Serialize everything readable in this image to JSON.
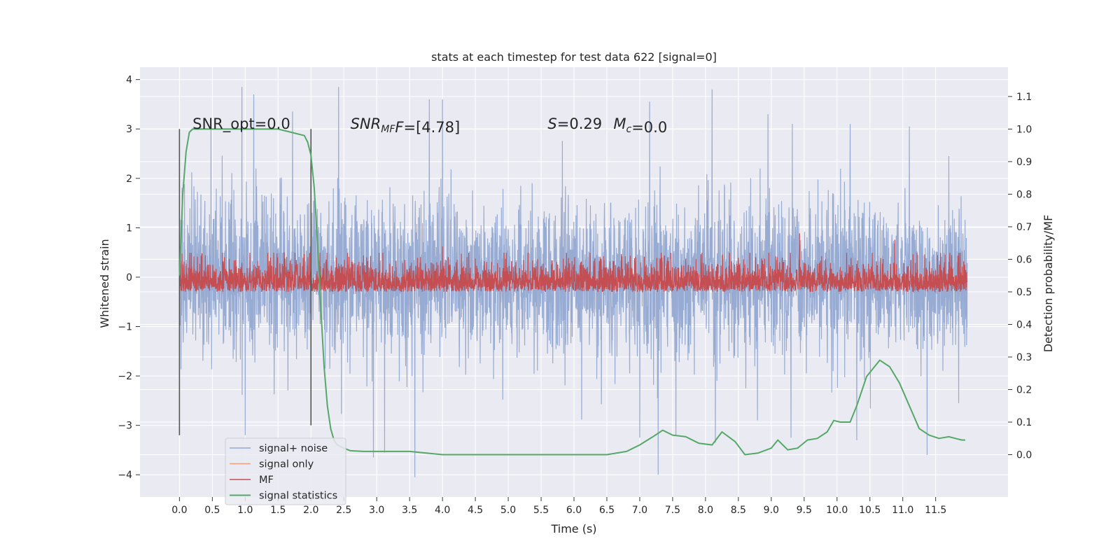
{
  "chart_data": {
    "type": "line",
    "title": "stats at each timestep for test data 622 [signal=0]",
    "xlabel": "Time (s)",
    "ylabel": "Whitened strain",
    "y2label": "Detection probability/MF",
    "xlim": [
      -0.6,
      12.6
    ],
    "ylim": [
      -4.45,
      4.25
    ],
    "y2lim": [
      -0.13,
      1.19
    ],
    "x_ticks": [
      0.0,
      0.5,
      1.0,
      1.5,
      2.0,
      2.5,
      3.0,
      3.5,
      4.0,
      4.5,
      5.0,
      5.5,
      6.0,
      6.5,
      7.0,
      7.5,
      8.0,
      8.5,
      9.0,
      9.5,
      10.0,
      10.5,
      11.0,
      11.5
    ],
    "x_tick_labels": [
      "0.0",
      "0.5",
      "1.0",
      "1.5",
      "2.0",
      "2.5",
      "3.0",
      "3.5",
      "4.0",
      "4.5",
      "5.0",
      "5.5",
      "6.0",
      "6.5",
      "7.0",
      "7.5",
      "8.0",
      "8.5",
      "9.0",
      "9.5",
      "10.0",
      "10.5",
      "11.0",
      "11.5"
    ],
    "y_ticks": [
      -4,
      -3,
      -2,
      -1,
      0,
      1,
      2,
      3,
      4
    ],
    "y_tick_labels": [
      "−4",
      "−3",
      "−2",
      "−1",
      "0",
      "1",
      "2",
      "3",
      "4"
    ],
    "y2_ticks": [
      0.0,
      0.1,
      0.2,
      0.3,
      0.4,
      0.5,
      0.6,
      0.7,
      0.8,
      0.9,
      1.0,
      1.1
    ],
    "y2_tick_labels": [
      "0.0",
      "0.1",
      "0.2",
      "0.3",
      "0.4",
      "0.5",
      "0.6",
      "0.7",
      "0.8",
      "0.9",
      "1.0",
      "1.1"
    ],
    "grid": true,
    "legend_position": "lower-left",
    "annotations": [
      {
        "plain": "SNR_opt=0.0",
        "x": 0.2,
        "y": 3.0
      },
      {
        "italic": "SNR",
        "sub": "MF",
        "post_italic": "F",
        "plain": "=[4.78]",
        "x": 2.6,
        "y": 3.0
      },
      {
        "italic": "S",
        "plain": "=0.29",
        "x": 5.6,
        "y": 3.0
      },
      {
        "italic": "M",
        "sub": "c",
        "plain": "=0.0",
        "x": 6.6,
        "y": 3.0
      }
    ],
    "vertical_lines": [
      {
        "x": 0.0,
        "y_from": -3.2,
        "y_to": 3.0
      },
      {
        "x": 2.0,
        "y_from": -3.0,
        "y_to": 3.0
      }
    ],
    "series": [
      {
        "name": "signal+ noise",
        "color": "#92a8d1",
        "axis": "left",
        "x_range": [
          0.0,
          11.98
        ],
        "sample_rate": 300,
        "envelope_typical": [
          -1.7,
          1.7
        ],
        "extreme_peaks": [
          [
            0.48,
            3.2
          ],
          [
            0.95,
            3.85
          ],
          [
            1.13,
            3.7
          ],
          [
            1.72,
            3.35
          ],
          [
            2.42,
            3.85
          ],
          [
            3.8,
            3.6
          ],
          [
            4.0,
            3.6
          ],
          [
            7.15,
            3.55
          ],
          [
            8.1,
            3.8
          ],
          [
            8.95,
            3.3
          ],
          [
            9.32,
            3.1
          ],
          [
            10.2,
            3.1
          ],
          [
            11.1,
            3.05
          ],
          [
            11.7,
            2.45
          ]
        ],
        "extreme_troughs": [
          [
            1.0,
            -3.2
          ],
          [
            2.95,
            -3.65
          ],
          [
            3.12,
            -3.55
          ],
          [
            3.58,
            -4.05
          ],
          [
            7.0,
            -3.25
          ],
          [
            7.28,
            -4.0
          ],
          [
            7.55,
            -3.2
          ],
          [
            8.15,
            -3.35
          ],
          [
            9.3,
            -3.25
          ],
          [
            10.3,
            -3.3
          ],
          [
            11.37,
            -3.6
          ],
          [
            11.85,
            -2.55
          ]
        ]
      },
      {
        "name": "signal only",
        "color": "#e8a07f",
        "axis": "left",
        "x": [
          0.0,
          11.98
        ],
        "y": [
          0.0,
          0.0
        ]
      },
      {
        "name": "MF",
        "color": "#c44e52",
        "axis": "right",
        "x_range": [
          0.0,
          11.98
        ],
        "sample_rate": 300,
        "band": [
          0.5,
          0.6
        ],
        "peaks": [
          [
            9.43,
            0.68
          ],
          [
            10.88,
            0.66
          ],
          [
            4.0,
            0.64
          ]
        ]
      },
      {
        "name": "signal statistics",
        "color": "#55a868",
        "axis": "right",
        "x": [
          0.0,
          0.05,
          0.1,
          0.15,
          0.2,
          0.3,
          0.5,
          0.8,
          1.2,
          1.5,
          1.7,
          1.8,
          1.9,
          1.95,
          2.0,
          2.05,
          2.1,
          2.15,
          2.2,
          2.25,
          2.3,
          2.35,
          2.4,
          2.5,
          2.6,
          2.8,
          3.0,
          3.5,
          4.0,
          4.5,
          5.0,
          5.5,
          6.0,
          6.5,
          6.8,
          7.0,
          7.2,
          7.35,
          7.5,
          7.7,
          7.9,
          8.1,
          8.25,
          8.35,
          8.45,
          8.6,
          8.8,
          9.0,
          9.1,
          9.25,
          9.4,
          9.55,
          9.7,
          9.85,
          9.95,
          10.05,
          10.2,
          10.3,
          10.45,
          10.65,
          10.8,
          10.95,
          11.1,
          11.25,
          11.4,
          11.55,
          11.7,
          11.8,
          11.9,
          11.95
        ],
        "y": [
          0.55,
          0.8,
          0.93,
          0.99,
          1.0,
          1.0,
          1.0,
          1.0,
          1.0,
          1.0,
          0.99,
          0.985,
          0.98,
          0.96,
          0.92,
          0.82,
          0.65,
          0.45,
          0.27,
          0.15,
          0.08,
          0.045,
          0.03,
          0.02,
          0.012,
          0.01,
          0.01,
          0.01,
          0.0,
          0.0,
          0.0,
          0.0,
          0.0,
          0.0,
          0.01,
          0.03,
          0.055,
          0.075,
          0.06,
          0.055,
          0.035,
          0.03,
          0.07,
          0.055,
          0.04,
          0.0,
          0.005,
          0.02,
          0.045,
          0.015,
          0.02,
          0.045,
          0.05,
          0.07,
          0.105,
          0.1,
          0.1,
          0.15,
          0.24,
          0.29,
          0.27,
          0.22,
          0.15,
          0.08,
          0.06,
          0.05,
          0.055,
          0.05,
          0.045,
          0.045
        ]
      }
    ]
  }
}
